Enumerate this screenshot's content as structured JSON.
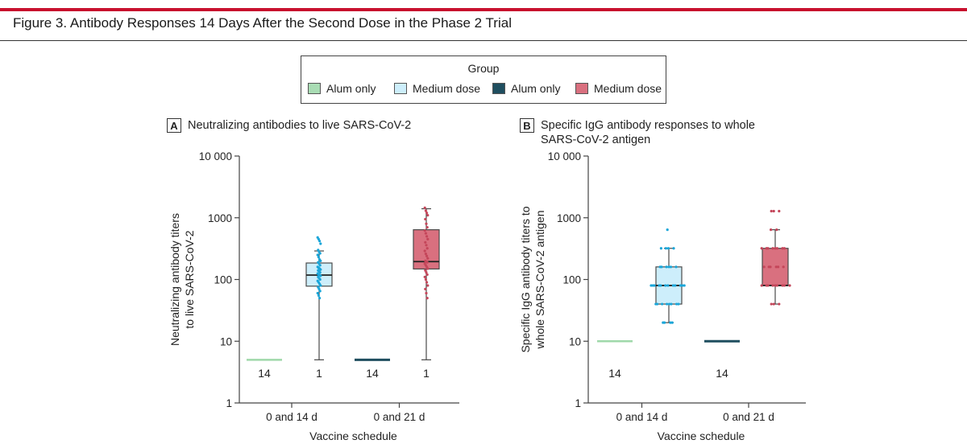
{
  "figure": {
    "title": "Figure 3. Antibody Responses 14 Days After the Second Dose in the Phase 2 Trial"
  },
  "legend": {
    "title": "Group",
    "items": [
      {
        "label": "Alum only",
        "color": "#a9dcb4"
      },
      {
        "label": "Medium dose",
        "color": "#cdeefb"
      },
      {
        "label": "Alum only",
        "color": "#1f4e5f"
      },
      {
        "label": "Medium dose",
        "color": "#d9707f"
      }
    ]
  },
  "chart_data": [
    {
      "type": "box",
      "panel": "A",
      "title": "Neutralizing antibodies to live SARS-CoV-2",
      "ylabel": "Neutralizing antibody titers to live SARS-CoV-2",
      "ylabel_lines": [
        "Neutralizing antibody titers",
        "to live SARS-CoV-2"
      ],
      "xlabel": "Vaccine schedule",
      "yscale": "log",
      "ylim": [
        1,
        10000
      ],
      "yticks": [
        1,
        10,
        100,
        1000,
        10000
      ],
      "ytick_labels": [
        "1",
        "10",
        "100",
        "1000",
        "10 000"
      ],
      "categories": [
        "0 and 14 d",
        "0 and 21 d"
      ],
      "groups": [
        {
          "legend_index": 0,
          "category": "0 and 14 d",
          "flat": true,
          "value": 5,
          "count_label": "14"
        },
        {
          "legend_index": 1,
          "category": "0 and 14 d",
          "whisker_low": 5,
          "q1": 78,
          "median": 118,
          "q3": 185,
          "whisker_high": 290,
          "count_label": "1",
          "points": [
            480,
            450,
            420,
            380,
            300,
            280,
            265,
            250,
            230,
            210,
            200,
            190,
            180,
            170,
            160,
            155,
            150,
            145,
            140,
            135,
            130,
            125,
            120,
            118,
            115,
            110,
            105,
            100,
            95,
            90,
            85,
            80,
            75,
            70,
            65,
            60,
            55,
            50
          ]
        },
        {
          "legend_index": 2,
          "category": "0 and 21 d",
          "flat": true,
          "value": 5,
          "count_label": "14"
        },
        {
          "legend_index": 3,
          "category": "0 and 21 d",
          "whisker_low": 5,
          "q1": 148,
          "median": 195,
          "q3": 640,
          "whisker_high": 1400,
          "count_label": "1",
          "points": [
            1450,
            1300,
            1200,
            1100,
            950,
            800,
            700,
            620,
            560,
            500,
            450,
            400,
            360,
            320,
            290,
            260,
            240,
            220,
            200,
            195,
            190,
            180,
            170,
            160,
            150,
            140,
            130,
            120,
            110,
            100,
            90,
            80,
            70,
            60,
            50
          ]
        }
      ]
    },
    {
      "type": "box",
      "panel": "B",
      "title": "Specific IgG antibody responses to whole SARS-CoV-2 antigen",
      "ylabel": "Specific IgG antibody titers to whole SARS-CoV-2 antigen",
      "ylabel_lines": [
        "Specific IgG antibody titers to",
        "whole SARS-CoV-2 antigen"
      ],
      "xlabel": "Vaccine schedule",
      "yscale": "log",
      "ylim": [
        1,
        10000
      ],
      "yticks": [
        1,
        10,
        100,
        1000,
        10000
      ],
      "ytick_labels": [
        "1",
        "10",
        "100",
        "1000",
        "10 000"
      ],
      "categories": [
        "0 and 14 d",
        "0 and 21 d"
      ],
      "groups": [
        {
          "legend_index": 0,
          "category": "0 and 14 d",
          "flat": true,
          "value": 10,
          "count_label": "14"
        },
        {
          "legend_index": 1,
          "category": "0 and 14 d",
          "whisker_low": 20,
          "q1": 40,
          "median": 80,
          "q3": 160,
          "whisker_high": 320,
          "count_label": "",
          "points": [
            640,
            320,
            320,
            320,
            320,
            160,
            160,
            160,
            160,
            160,
            160,
            80,
            80,
            80,
            80,
            80,
            80,
            80,
            80,
            80,
            80,
            80,
            80,
            40,
            40,
            40,
            40,
            40,
            40,
            40,
            40,
            20,
            20,
            20,
            20
          ]
        },
        {
          "legend_index": 2,
          "category": "0 and 21 d",
          "flat": true,
          "value": 10,
          "count_label": "14"
        },
        {
          "legend_index": 3,
          "category": "0 and 21 d",
          "whisker_low": 40,
          "q1": 80,
          "median": 80,
          "q3": 320,
          "whisker_high": 640,
          "count_label": "",
          "points": [
            1280,
            1280,
            1280,
            640,
            640,
            320,
            320,
            320,
            320,
            320,
            320,
            320,
            320,
            160,
            160,
            160,
            160,
            160,
            160,
            80,
            80,
            80,
            80,
            80,
            80,
            80,
            80,
            80,
            40,
            40,
            40
          ]
        }
      ]
    }
  ]
}
